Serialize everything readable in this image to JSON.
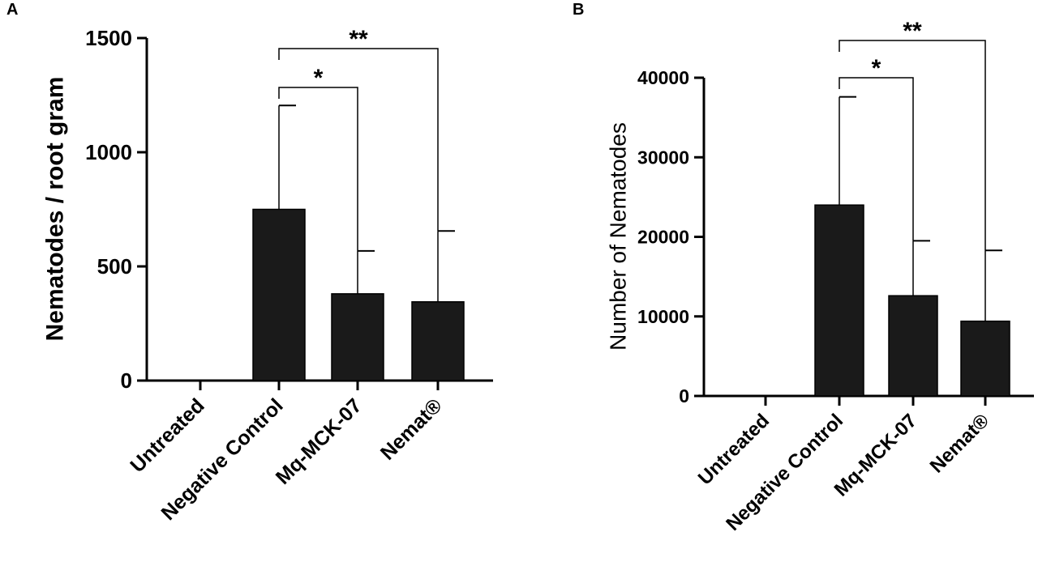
{
  "panels": [
    {
      "letter": "A"
    },
    {
      "letter": "B"
    }
  ],
  "chart_data": [
    {
      "type": "bar",
      "panel": "A",
      "categories": [
        "Untreated",
        "Negative Control",
        "Mq-MCK-07",
        "Nemat®"
      ],
      "values": [
        0,
        750,
        380,
        345
      ],
      "error_upper": [
        0,
        1205,
        568,
        655
      ],
      "ylabel": "Nematodes / root gram",
      "ylim": [
        0,
        1500
      ],
      "yticks": [
        0,
        500,
        1000,
        1500
      ],
      "bar_color": "#1a1a1a",
      "grid": false,
      "significance": [
        {
          "from": "Negative Control",
          "to": "Mq-MCK-07",
          "label": "*"
        },
        {
          "from": "Negative Control",
          "to": "Nemat®",
          "label": "**"
        }
      ]
    },
    {
      "type": "bar",
      "panel": "B",
      "categories": [
        "Untreated",
        "Negative Control",
        "Mq-MCK-07",
        "Nemat®"
      ],
      "values": [
        0,
        24000,
        12600,
        9400
      ],
      "error_upper": [
        0,
        37600,
        19500,
        18300
      ],
      "ylabel": "Number of Nematodes",
      "ylim": [
        0,
        40000
      ],
      "yticks": [
        0,
        10000,
        20000,
        30000,
        40000
      ],
      "bar_color": "#1a1a1a",
      "grid": false,
      "significance": [
        {
          "from": "Negative Control",
          "to": "Mq-MCK-07",
          "label": "*"
        },
        {
          "from": "Negative Control",
          "to": "Nemat®",
          "label": "**"
        }
      ]
    }
  ]
}
